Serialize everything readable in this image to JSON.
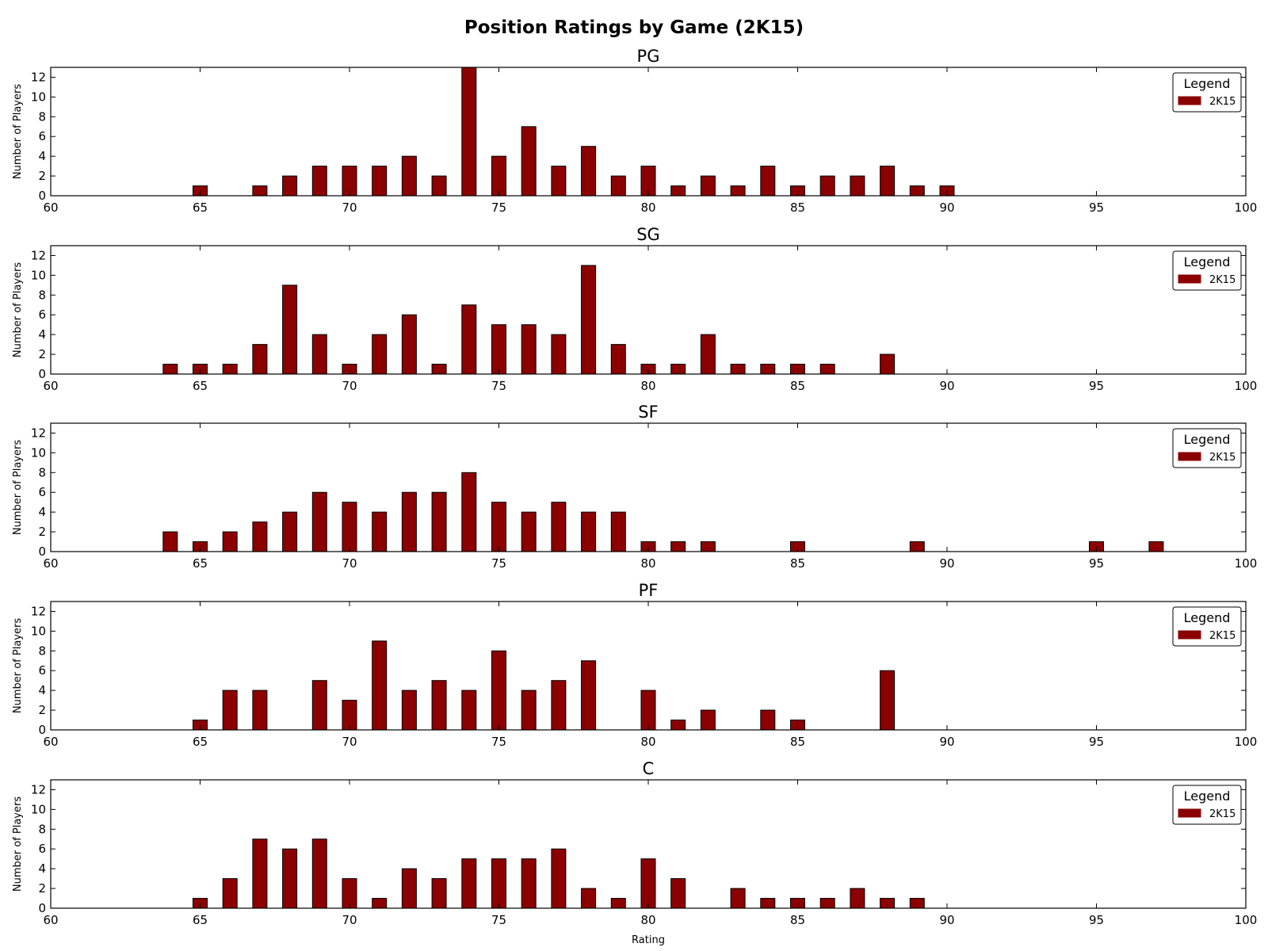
{
  "chart_data": {
    "type": "bar",
    "title": "Position Ratings by Game (2K15)",
    "xlabel": "Rating",
    "ylabel": "Number of Players",
    "xlim": [
      60,
      100
    ],
    "ylim": [
      0,
      13
    ],
    "xticks": [
      60,
      65,
      70,
      75,
      80,
      85,
      90,
      95,
      100
    ],
    "yticks": [
      0,
      2,
      4,
      6,
      8,
      10,
      12
    ],
    "categories": [
      64,
      65,
      66,
      67,
      68,
      69,
      70,
      71,
      72,
      73,
      74,
      75,
      76,
      77,
      78,
      79,
      80,
      81,
      82,
      83,
      84,
      85,
      86,
      87,
      88,
      89,
      90,
      91,
      92,
      93,
      94,
      95,
      96,
      97
    ],
    "grid": false,
    "legend_position": "top-right",
    "bar_color": "#8b0000",
    "subplots": [
      {
        "title": "PG",
        "legend_title": "Legend",
        "series": [
          {
            "name": "2K15",
            "values": [
              0,
              1,
              0,
              1,
              2,
              3,
              3,
              3,
              4,
              2,
              13,
              4,
              7,
              3,
              5,
              2,
              3,
              1,
              2,
              1,
              3,
              1,
              2,
              2,
              3,
              1,
              1,
              0,
              0,
              0,
              0,
              0,
              0,
              0
            ]
          }
        ]
      },
      {
        "title": "SG",
        "legend_title": "Legend",
        "series": [
          {
            "name": "2K15",
            "values": [
              1,
              1,
              1,
              3,
              9,
              4,
              1,
              4,
              6,
              1,
              7,
              5,
              5,
              4,
              11,
              3,
              1,
              1,
              4,
              1,
              1,
              1,
              1,
              0,
              2,
              0,
              0,
              0,
              0,
              0,
              0,
              0,
              0,
              0
            ]
          }
        ]
      },
      {
        "title": "SF",
        "legend_title": "Legend",
        "series": [
          {
            "name": "2K15",
            "values": [
              2,
              1,
              2,
              3,
              4,
              6,
              5,
              4,
              6,
              6,
              8,
              5,
              4,
              5,
              4,
              4,
              1,
              1,
              1,
              0,
              0,
              1,
              0,
              0,
              0,
              1,
              0,
              0,
              0,
              0,
              0,
              1,
              0,
              1
            ]
          }
        ]
      },
      {
        "title": "PF",
        "legend_title": "Legend",
        "series": [
          {
            "name": "2K15",
            "values": [
              0,
              1,
              4,
              4,
              0,
              5,
              3,
              9,
              4,
              5,
              4,
              8,
              4,
              5,
              7,
              0,
              4,
              1,
              2,
              0,
              2,
              1,
              0,
              0,
              6,
              0,
              0,
              0,
              0,
              0,
              0,
              0,
              0,
              0
            ]
          }
        ]
      },
      {
        "title": "C",
        "legend_title": "Legend",
        "series": [
          {
            "name": "2K15",
            "values": [
              0,
              1,
              3,
              7,
              6,
              7,
              3,
              1,
              4,
              3,
              5,
              5,
              5,
              6,
              2,
              1,
              5,
              3,
              0,
              2,
              1,
              1,
              1,
              2,
              1,
              1,
              0,
              0,
              0,
              0,
              0,
              0,
              0,
              0
            ]
          }
        ]
      }
    ]
  }
}
